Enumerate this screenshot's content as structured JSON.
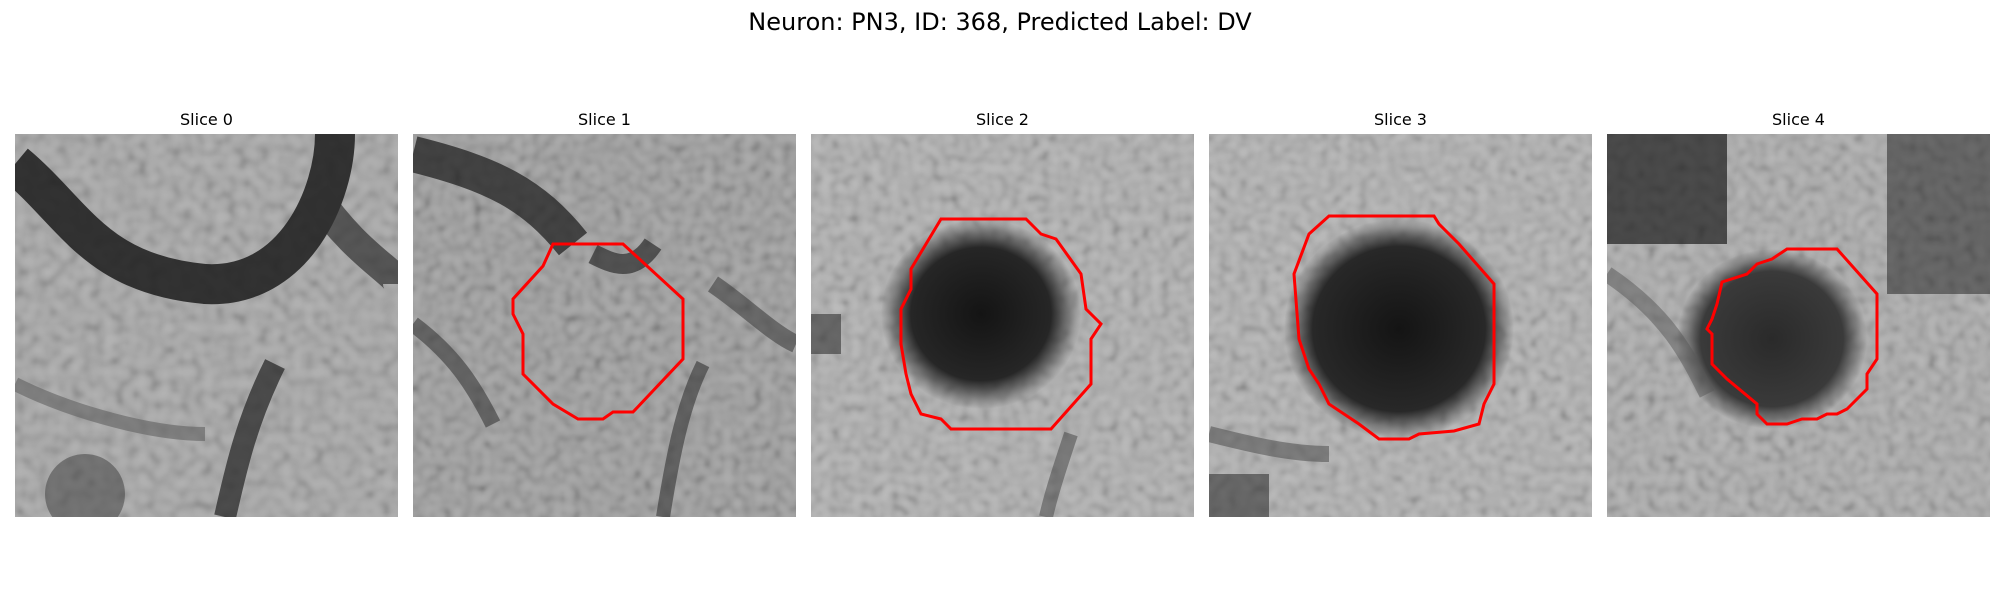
{
  "figure": {
    "title": "Neuron: PN3, ID: 368, Predicted Label: DV"
  },
  "colors": {
    "contour": "#ff0000",
    "background": "#ffffff"
  },
  "panels": [
    {
      "title": "Slice 0",
      "has_contour": false
    },
    {
      "title": "Slice 1",
      "has_contour": true
    },
    {
      "title": "Slice 2",
      "has_contour": true
    },
    {
      "title": "Slice 3",
      "has_contour": true
    },
    {
      "title": "Slice 4",
      "has_contour": true
    }
  ]
}
